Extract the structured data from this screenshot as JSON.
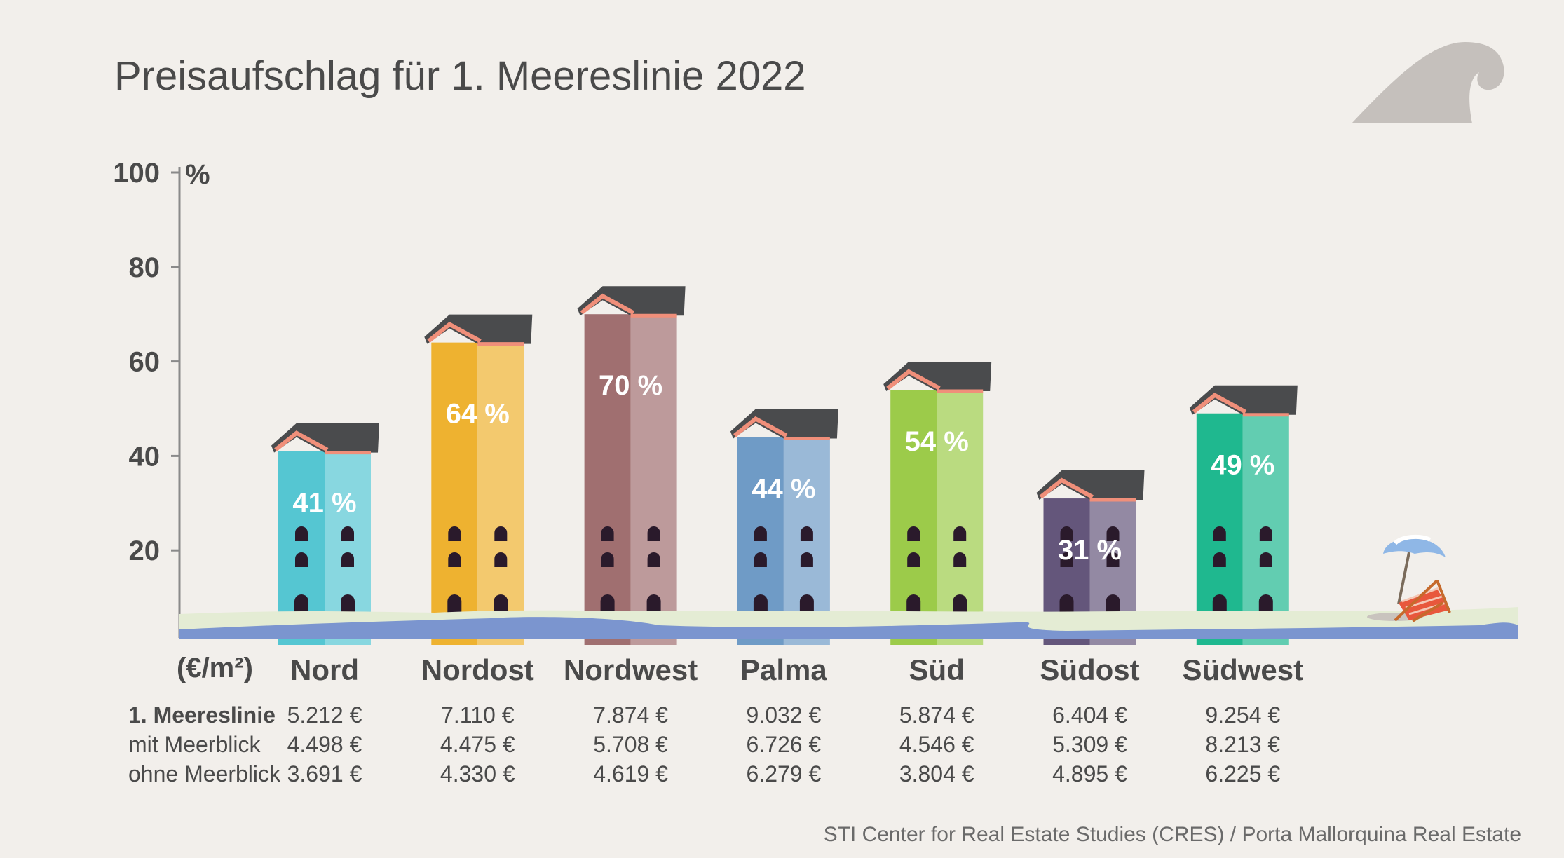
{
  "title": "Preisaufschlag für 1. Meereslinie 2022",
  "source": "STI Center for Real Estate Studies (CRES) / Porta Mallorquina Real Estate",
  "icons": {
    "wave": "wave-icon",
    "beach": "beach-chair-umbrella-icon"
  },
  "colors": {
    "background": "#f2efeb",
    "text": "#4a4a4a",
    "sea": "#7b95cf",
    "sand": "#e4ecd4",
    "roof": "#4a4b4d",
    "roof_trim": "#f08f7a"
  },
  "chart_data": {
    "type": "bar",
    "title": "Preisaufschlag für 1. Meereslinie 2022",
    "y_unit": "%",
    "ylim": [
      0,
      100
    ],
    "y_ticks": [
      "20",
      "40",
      "60",
      "80",
      "100"
    ],
    "categories": [
      "Nord",
      "Nordost",
      "Nordwest",
      "Palma",
      "Süd",
      "Südost",
      "Südwest"
    ],
    "values": [
      41,
      64,
      70,
      44,
      54,
      31,
      49
    ],
    "value_labels": [
      "41 %",
      "64 %",
      "70 %",
      "44 %",
      "54 %",
      "31 %",
      "49 %"
    ],
    "bar_colors": [
      "#55c6d2",
      "#eeb230",
      "#a06f70",
      "#6f9bc6",
      "#9ccb4a",
      "#64567b",
      "#1fb88f"
    ],
    "table": {
      "unit_label": "(€/m²)",
      "rows": [
        {
          "label": "1. Meereslinie",
          "values": [
            "5.212 €",
            "7.110 €",
            "7.874 €",
            "9.032 €",
            "5.874 €",
            "6.404 €",
            "9.254 €"
          ]
        },
        {
          "label": "mit Meerblick",
          "values": [
            "4.498 €",
            "4.475 €",
            "5.708 €",
            "6.726 €",
            "4.546 €",
            "5.309 €",
            "8.213 €"
          ]
        },
        {
          "label": "ohne Meerblick",
          "values": [
            "3.691 €",
            "4.330 €",
            "4.619 €",
            "6.279 €",
            "3.804 €",
            "4.895 €",
            "6.225 €"
          ]
        }
      ]
    }
  }
}
